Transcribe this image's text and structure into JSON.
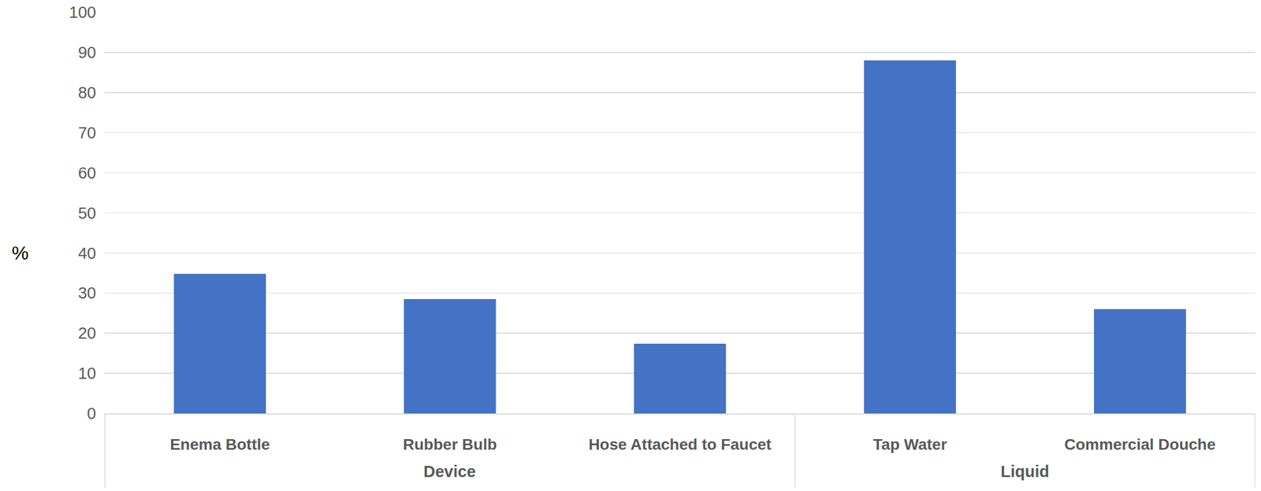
{
  "chart_data": {
    "type": "bar",
    "ylabel": "%",
    "categories": [
      "Enema Bottle",
      "Rubber Bulb",
      "Hose Attached to Faucet",
      "Tap Water",
      "Commercial Douche"
    ],
    "groups": [
      "Device",
      "Device",
      "Device",
      "Liquid",
      "Liquid"
    ],
    "values": [
      34.8,
      28.5,
      17.4,
      88,
      26
    ],
    "color": "#4472c4",
    "ylim": [
      0,
      100
    ],
    "yticks": [
      0,
      10,
      20,
      30,
      40,
      50,
      60,
      70,
      80,
      90,
      100
    ],
    "grid": true
  }
}
